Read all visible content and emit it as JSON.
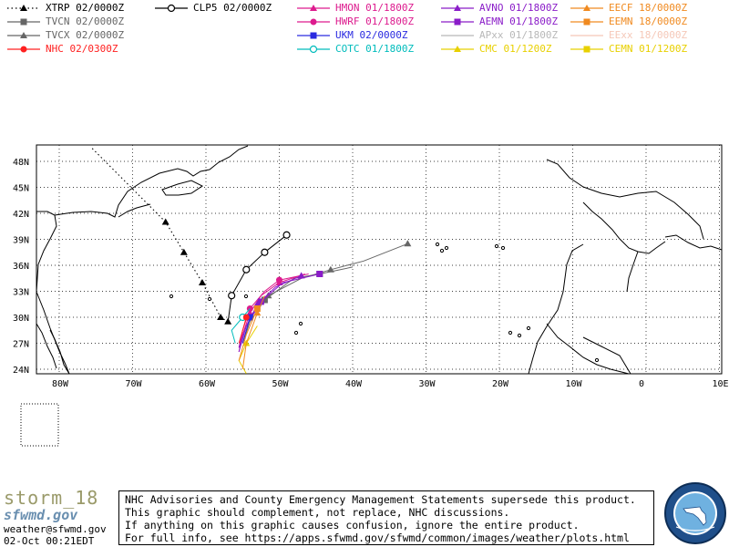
{
  "legend": [
    {
      "label": "XTRP 02/0000Z",
      "color": "#000000",
      "marker": "triangle",
      "line": "dotted",
      "col": 0,
      "row": 0
    },
    {
      "label": "TVCN 02/0000Z",
      "color": "#666666",
      "marker": "square",
      "line": "solid",
      "col": 0,
      "row": 1
    },
    {
      "label": "TVCX 02/0000Z",
      "color": "#666666",
      "marker": "triangle",
      "line": "solid",
      "col": 0,
      "row": 2
    },
    {
      "label": "NHC 02/0300Z",
      "color": "#ff2020",
      "marker": "circle",
      "line": "solid",
      "col": 0,
      "row": 3
    },
    {
      "label": "CLP5 02/0000Z",
      "color": "#000000",
      "marker": "circle-open",
      "line": "solid",
      "col": 1,
      "row": 0
    },
    {
      "label": "HMON 01/1800Z",
      "color": "#dd1b8e",
      "marker": "triangle",
      "line": "solid",
      "col": 2,
      "row": 0
    },
    {
      "label": "HWRF 01/1800Z",
      "color": "#dd1b8e",
      "marker": "circle",
      "line": "solid",
      "col": 2,
      "row": 1
    },
    {
      "label": "UKM 02/0000Z",
      "color": "#2a2ae0",
      "marker": "square",
      "line": "solid",
      "col": 2,
      "row": 2
    },
    {
      "label": "COTC 01/1800Z",
      "color": "#00bcbc",
      "marker": "circle-open",
      "line": "solid",
      "col": 2,
      "row": 3
    },
    {
      "label": "AVNO 01/1800Z",
      "color": "#8a1cc8",
      "marker": "triangle",
      "line": "solid",
      "col": 3,
      "row": 0
    },
    {
      "label": "AEMN 01/1800Z",
      "color": "#8a1cc8",
      "marker": "square",
      "line": "solid",
      "col": 3,
      "row": 1
    },
    {
      "label": "APxx 01/1800Z",
      "color": "#b8b8b8",
      "marker": "none",
      "line": "solid",
      "col": 3,
      "row": 2
    },
    {
      "label": "CMC 01/1200Z",
      "color": "#e8d000",
      "marker": "triangle",
      "line": "solid",
      "col": 3,
      "row": 3
    },
    {
      "label": "EECF 18/0000Z",
      "color": "#f08a20",
      "marker": "triangle",
      "line": "solid",
      "col": 4,
      "row": 0
    },
    {
      "label": "EEMN 18/0000Z",
      "color": "#f08a20",
      "marker": "square",
      "line": "solid",
      "col": 4,
      "row": 1
    },
    {
      "label": "EExx 18/0000Z",
      "color": "#f5c8b8",
      "marker": "none",
      "line": "solid",
      "col": 4,
      "row": 2
    },
    {
      "label": "CEMN 01/1200Z",
      "color": "#e8d000",
      "marker": "square",
      "line": "solid",
      "col": 4,
      "row": 3
    }
  ],
  "map": {
    "lat_labels": [
      "48N",
      "45N",
      "42N",
      "39N",
      "36N",
      "33N",
      "30N",
      "27N",
      "24N"
    ],
    "lon_labels": [
      "80W",
      "70W",
      "60W",
      "50W",
      "40W",
      "30W",
      "20W",
      "10W",
      "0",
      "10E"
    ]
  },
  "tracks": {
    "XTRP": [
      [
        -75.5,
        49.5
      ],
      [
        -65.5,
        41
      ],
      [
        -63,
        37.5
      ],
      [
        -60.5,
        34
      ],
      [
        -58,
        30
      ],
      [
        -57,
        29.5
      ]
    ],
    "CLP5": [
      [
        -57,
        29.5
      ],
      [
        -56.5,
        32.5
      ],
      [
        -54.5,
        35.5
      ],
      [
        -52,
        37.5
      ],
      [
        -49,
        39.5
      ]
    ],
    "TVCN": [
      [
        -55,
        27
      ],
      [
        -54,
        29.5
      ],
      [
        -52,
        32
      ],
      [
        -48,
        34.5
      ],
      [
        -44.5,
        35
      ],
      [
        -40,
        35.8
      ]
    ],
    "TVCX": [
      [
        -55,
        27
      ],
      [
        -54,
        30
      ],
      [
        -51.5,
        32.5
      ],
      [
        -47,
        34.5
      ],
      [
        -43,
        35.5
      ],
      [
        -38.5,
        36.5
      ],
      [
        -32.5,
        38.5
      ]
    ],
    "HMON": [
      [
        -55.5,
        26
      ],
      [
        -55,
        28
      ],
      [
        -54,
        30.5
      ],
      [
        -52.5,
        32.5
      ],
      [
        -50,
        34
      ],
      [
        -46.5,
        35
      ]
    ],
    "HWRF": [
      [
        -55.5,
        26.5
      ],
      [
        -55,
        28.5
      ],
      [
        -54,
        31
      ],
      [
        -52,
        33
      ],
      [
        -50,
        34.3
      ],
      [
        -46,
        35
      ]
    ],
    "AVNO": [
      [
        -55.5,
        26
      ],
      [
        -54.5,
        29
      ],
      [
        -53,
        31.5
      ],
      [
        -50.5,
        33.5
      ],
      [
        -47,
        34.8
      ]
    ],
    "AEMN": [
      [
        -55.5,
        26.5
      ],
      [
        -54.5,
        29
      ],
      [
        -52.5,
        31.8
      ],
      [
        -49.5,
        34
      ],
      [
        -44.5,
        35
      ]
    ],
    "UKM": [
      [
        -55,
        27
      ],
      [
        -54.5,
        28.5
      ],
      [
        -54,
        30
      ]
    ],
    "COTC": [
      [
        -56,
        27
      ],
      [
        -56.5,
        28.5
      ],
      [
        -55,
        30
      ],
      [
        -54,
        31
      ]
    ],
    "CMC": [
      [
        -54.5,
        23.5
      ],
      [
        -55.5,
        25
      ],
      [
        -54.5,
        27
      ],
      [
        -53,
        29
      ]
    ],
    "EECF": [
      [
        -55,
        24
      ],
      [
        -54.5,
        27
      ],
      [
        -53,
        30.5
      ],
      [
        -52,
        32.5
      ]
    ],
    "EEMN": [
      [
        -55.5,
        25
      ],
      [
        -54.5,
        28
      ],
      [
        -53,
        31
      ]
    ],
    "NHC": [
      [
        -55.5,
        27
      ],
      [
        -55,
        28.5
      ],
      [
        -54.5,
        30
      ]
    ]
  },
  "footer": {
    "storm": "storm_18",
    "brand": "sfwmd.gov",
    "email": "weather@sfwmd.gov",
    "date": "02-Oct 00:21EDT",
    "notice": [
      "NHC Advisories and County Emergency Management Statements supersede this product.",
      "This graphic should complement, not replace, NHC discussions.",
      "If anything on this graphic causes confusion, ignore the entire product.",
      "For full info, see  https://apps.sfwmd.gov/sfwmd/common/images/weather/plots.html"
    ]
  }
}
